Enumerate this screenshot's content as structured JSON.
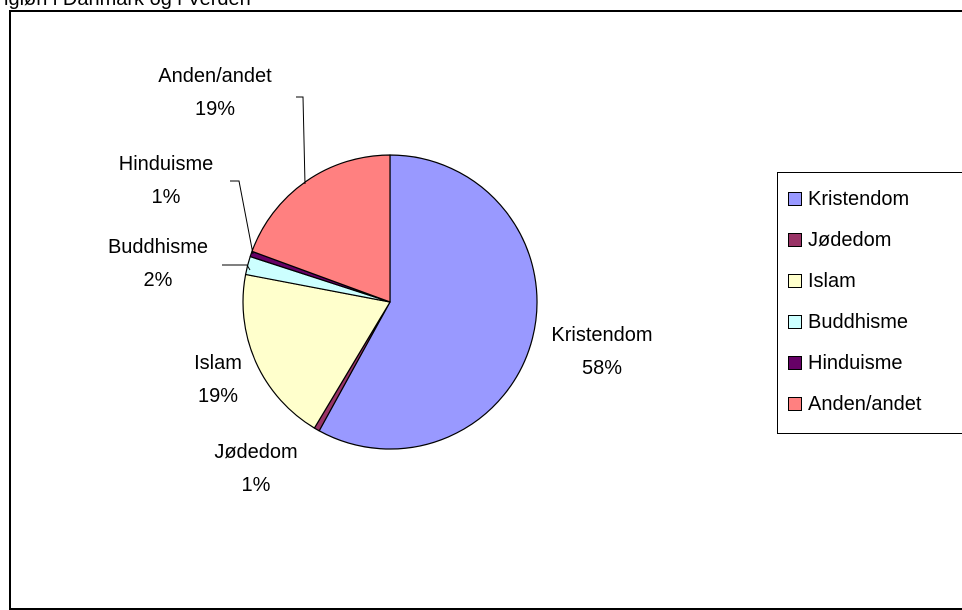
{
  "header_fragment": "igiøn i Danmark og i Verden",
  "chart_data": {
    "type": "pie",
    "title": "",
    "legend_position": "right",
    "slices": [
      {
        "label": "Kristendom",
        "percent_label": "58%",
        "value": 58,
        "color": "#9999FF"
      },
      {
        "label": "Jødedom",
        "percent_label": "1%",
        "value": 0.6,
        "color": "#993366"
      },
      {
        "label": "Islam",
        "percent_label": "19%",
        "value": 19.4,
        "color": "#FFFFCC"
      },
      {
        "label": "Buddhisme",
        "percent_label": "2%",
        "value": 2,
        "color": "#CCFFFF"
      },
      {
        "label": "Hinduisme",
        "percent_label": "1%",
        "value": 0.6,
        "color": "#660066"
      },
      {
        "label": "Anden/andet",
        "percent_label": "19%",
        "value": 19.4,
        "color": "#FF8080"
      }
    ]
  }
}
